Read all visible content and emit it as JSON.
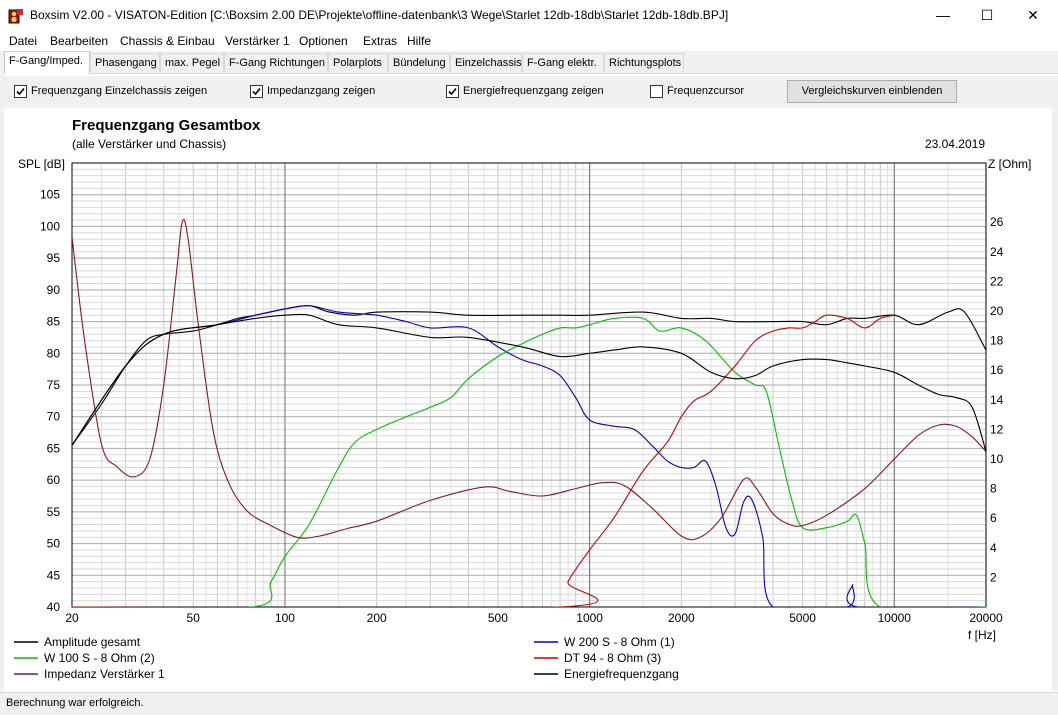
{
  "window": {
    "title": "Boxsim V2.00 - VISATON-Edition [C:\\Boxsim 2.00 DE\\Projekte\\offline-datenbank\\3 Wege\\Starlet 12db-18db\\Starlet 12db-18db.BPJ]",
    "minimize_glyph": "—",
    "maximize_glyph": "☐",
    "close_glyph": "✕"
  },
  "menu": [
    "Datei",
    "Bearbeiten",
    "Chassis & Einbau",
    "Verstärker 1",
    "Optionen",
    "Extras",
    "Hilfe"
  ],
  "tabs": [
    "F-Gang/Imped.",
    "Phasengang",
    "max. Pegel",
    "F-Gang Richtungen",
    "Polarplots",
    "Bündelung",
    "Einzelchassis",
    "F-Gang elektr.",
    "Richtungsplots"
  ],
  "active_tab": "F-Gang/Imped.",
  "options": {
    "checkboxes": [
      {
        "label": "Frequenzgang Einzelchassis zeigen",
        "checked": true
      },
      {
        "label": "Impedanzgang zeigen",
        "checked": true
      },
      {
        "label": "Energiefrequenzgang zeigen",
        "checked": true
      },
      {
        "label": "Frequenzcursor",
        "checked": false
      }
    ],
    "compare_button": "Vergleichskurven einblenden"
  },
  "status": "Berechnung war erfolgreich.",
  "icons": {
    "app": "boxsim-app-icon"
  },
  "chart_data": {
    "type": "line",
    "title": "Frequenzgang Gesamtbox",
    "subtitle": "(alle Verstärker und Chassis)",
    "date": "23.04.2019",
    "ylabel": "SPL [dB]",
    "y2label": "Z [Ohm]",
    "xlabel": "f [Hz]",
    "xscale": "log",
    "xlim": [
      20,
      20000
    ],
    "ylim": [
      40,
      110
    ],
    "y2lim": [
      0,
      30
    ],
    "xticks": [
      20,
      50,
      100,
      200,
      500,
      1000,
      2000,
      5000,
      10000,
      20000
    ],
    "xtick_labels": [
      "20",
      "50",
      "100",
      "200",
      "500",
      "1000",
      "2000",
      "5000",
      "10000",
      "20000"
    ],
    "yticks": [
      40,
      45,
      50,
      55,
      60,
      65,
      70,
      75,
      80,
      85,
      90,
      95,
      100,
      105
    ],
    "y2ticks": [
      2,
      4,
      6,
      8,
      10,
      12,
      14,
      16,
      18,
      20,
      22,
      24,
      26
    ],
    "grid": true,
    "legend_position": "bottom",
    "series": [
      {
        "name": "Amplitude gesamt",
        "axis": "left",
        "color": "#000000",
        "points": [
          [
            20,
            65.5
          ],
          [
            25,
            72
          ],
          [
            30,
            78
          ],
          [
            35,
            82
          ],
          [
            40,
            83
          ],
          [
            50,
            83.5
          ],
          [
            60,
            84.5
          ],
          [
            70,
            85.5
          ],
          [
            80,
            86
          ],
          [
            100,
            87
          ],
          [
            120,
            87.5
          ],
          [
            140,
            86.5
          ],
          [
            170,
            86
          ],
          [
            200,
            86.5
          ],
          [
            300,
            86.5
          ],
          [
            400,
            86
          ],
          [
            600,
            86
          ],
          [
            800,
            86
          ],
          [
            1000,
            86
          ],
          [
            1500,
            86.5
          ],
          [
            2000,
            85.5
          ],
          [
            2500,
            85.5
          ],
          [
            3000,
            85
          ],
          [
            4000,
            85
          ],
          [
            5000,
            85
          ],
          [
            6000,
            84.5
          ],
          [
            7000,
            85.5
          ],
          [
            8000,
            85.5
          ],
          [
            10000,
            86
          ],
          [
            12000,
            84.5
          ],
          [
            15000,
            86.5
          ],
          [
            17000,
            86.5
          ],
          [
            20000,
            80.5
          ]
        ]
      },
      {
        "name": "W 200 S - 8 Ohm (1)",
        "axis": "left",
        "color": "#0000cc",
        "points": [
          [
            20,
            65.5
          ],
          [
            30,
            78
          ],
          [
            40,
            83
          ],
          [
            60,
            84.5
          ],
          [
            80,
            86
          ],
          [
            100,
            87
          ],
          [
            120,
            87.5
          ],
          [
            150,
            86.5
          ],
          [
            200,
            86
          ],
          [
            250,
            85
          ],
          [
            300,
            84
          ],
          [
            400,
            84
          ],
          [
            500,
            81
          ],
          [
            600,
            79
          ],
          [
            700,
            78
          ],
          [
            800,
            76.5
          ],
          [
            900,
            73
          ],
          [
            1000,
            69.5
          ],
          [
            1200,
            68.5
          ],
          [
            1400,
            68
          ],
          [
            1600,
            65.5
          ],
          [
            1800,
            63
          ],
          [
            2000,
            62
          ],
          [
            2200,
            62
          ],
          [
            2400,
            63
          ],
          [
            2600,
            59
          ],
          [
            2800,
            52.5
          ],
          [
            3000,
            51.5
          ],
          [
            3200,
            56.5
          ],
          [
            3400,
            57
          ],
          [
            3700,
            51
          ],
          [
            4000,
            40
          ],
          [
            7000,
            40
          ],
          [
            7300,
            43.5
          ],
          [
            7600,
            40
          ],
          [
            20000,
            40
          ]
        ]
      },
      {
        "name": "W 100 S - 8 Ohm (2)",
        "axis": "left",
        "color": "#00c000",
        "points": [
          [
            20,
            40
          ],
          [
            78,
            40
          ],
          [
            90,
            44
          ],
          [
            100,
            48
          ],
          [
            120,
            53
          ],
          [
            150,
            62
          ],
          [
            170,
            66
          ],
          [
            200,
            68
          ],
          [
            250,
            70
          ],
          [
            300,
            71.5
          ],
          [
            350,
            73
          ],
          [
            400,
            76
          ],
          [
            500,
            79.5
          ],
          [
            600,
            81.5
          ],
          [
            700,
            83
          ],
          [
            800,
            84
          ],
          [
            900,
            84
          ],
          [
            1000,
            84.5
          ],
          [
            1200,
            85.5
          ],
          [
            1500,
            85.5
          ],
          [
            1700,
            83.5
          ],
          [
            2000,
            84
          ],
          [
            2400,
            82
          ],
          [
            3000,
            77
          ],
          [
            3500,
            75
          ],
          [
            3800,
            74
          ],
          [
            4200,
            65
          ],
          [
            4600,
            57
          ],
          [
            5000,
            52.5
          ],
          [
            6000,
            52.5
          ],
          [
            7000,
            53.5
          ],
          [
            7500,
            54.5
          ],
          [
            8000,
            50
          ],
          [
            9000,
            40
          ],
          [
            20000,
            40
          ]
        ]
      },
      {
        "name": "DT 94 - 8 Ohm (3)",
        "axis": "left",
        "color": "#cc0000",
        "points": [
          [
            20,
            40
          ],
          [
            800,
            40
          ],
          [
            850,
            44
          ],
          [
            1000,
            49
          ],
          [
            1200,
            54
          ],
          [
            1500,
            61.5
          ],
          [
            1800,
            66
          ],
          [
            2000,
            70
          ],
          [
            2200,
            72.5
          ],
          [
            2500,
            74
          ],
          [
            3000,
            78
          ],
          [
            3500,
            82
          ],
          [
            4000,
            83.5
          ],
          [
            4500,
            84
          ],
          [
            5000,
            84
          ],
          [
            5500,
            85
          ],
          [
            6000,
            86
          ],
          [
            7000,
            85.5
          ],
          [
            8000,
            84
          ],
          [
            9000,
            85.5
          ],
          [
            10000,
            86
          ]
        ]
      },
      {
        "name": "Impedanz Verstärker 1",
        "axis": "right",
        "color": "#8b1a1a",
        "points": [
          [
            20,
            25
          ],
          [
            22,
            18
          ],
          [
            25,
            11
          ],
          [
            28,
            9.5
          ],
          [
            32,
            8.8
          ],
          [
            36,
            10
          ],
          [
            40,
            15
          ],
          [
            44,
            22.5
          ],
          [
            46,
            26
          ],
          [
            48,
            25
          ],
          [
            52,
            19
          ],
          [
            58,
            12
          ],
          [
            65,
            8.5
          ],
          [
            75,
            6.5
          ],
          [
            90,
            5.5
          ],
          [
            110,
            4.7
          ],
          [
            130,
            4.8
          ],
          [
            160,
            5.3
          ],
          [
            200,
            5.8
          ],
          [
            300,
            7.2
          ],
          [
            450,
            8.1
          ],
          [
            550,
            7.8
          ],
          [
            700,
            7.5
          ],
          [
            900,
            8
          ],
          [
            1100,
            8.4
          ],
          [
            1300,
            8.2
          ],
          [
            1600,
            6.7
          ],
          [
            2000,
            4.8
          ],
          [
            2300,
            4.7
          ],
          [
            2700,
            6
          ],
          [
            3200,
            8.6
          ],
          [
            3500,
            8.1
          ],
          [
            4000,
            6.3
          ],
          [
            4500,
            5.6
          ],
          [
            5000,
            5.5
          ],
          [
            6000,
            6.2
          ],
          [
            8000,
            8
          ],
          [
            10000,
            10
          ],
          [
            12000,
            11.6
          ],
          [
            14000,
            12.3
          ],
          [
            16000,
            12.2
          ],
          [
            18000,
            11.5
          ],
          [
            20000,
            10.5
          ]
        ]
      },
      {
        "name": "Energiefrequenzgang",
        "axis": "left",
        "color": "#000000",
        "points": [
          [
            20,
            65.5
          ],
          [
            30,
            78
          ],
          [
            40,
            83
          ],
          [
            60,
            84.5
          ],
          [
            80,
            85.5
          ],
          [
            100,
            86
          ],
          [
            120,
            86
          ],
          [
            150,
            84.5
          ],
          [
            200,
            84
          ],
          [
            300,
            82.5
          ],
          [
            400,
            82.5
          ],
          [
            600,
            81
          ],
          [
            800,
            79.5
          ],
          [
            1000,
            80
          ],
          [
            1200,
            80.5
          ],
          [
            1500,
            81
          ],
          [
            2000,
            80
          ],
          [
            2500,
            77
          ],
          [
            3000,
            76
          ],
          [
            3500,
            76.5
          ],
          [
            4000,
            78
          ],
          [
            5000,
            79
          ],
          [
            6000,
            79
          ],
          [
            7000,
            78.5
          ],
          [
            8000,
            78
          ],
          [
            10000,
            77
          ],
          [
            12000,
            75
          ],
          [
            14000,
            73.5
          ],
          [
            16000,
            73
          ],
          [
            18000,
            71.5
          ],
          [
            20000,
            64.5
          ]
        ]
      }
    ]
  }
}
